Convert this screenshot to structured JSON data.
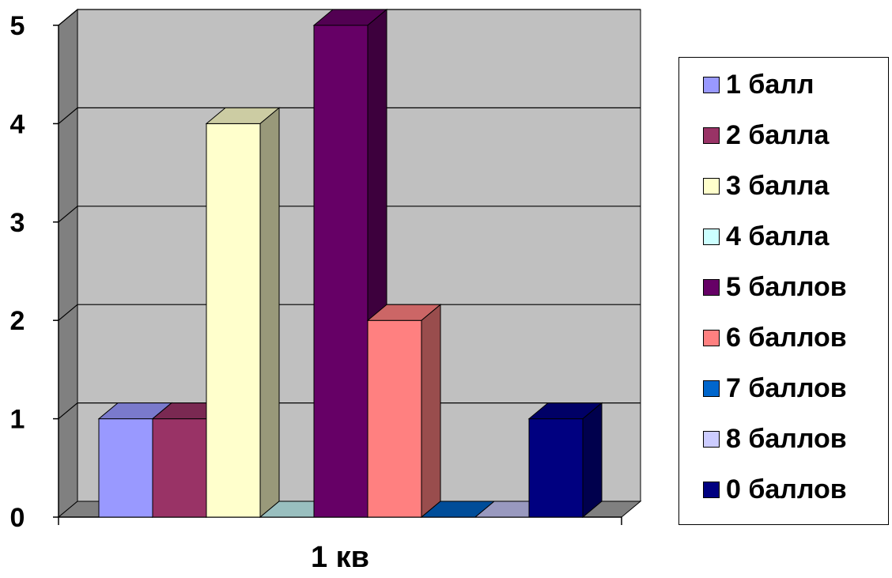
{
  "chart_data": {
    "type": "bar",
    "categories": [
      "1 кв"
    ],
    "xlabel": "",
    "ylabel": "",
    "ylim": [
      0,
      5
    ],
    "yticks": [
      0,
      1,
      2,
      3,
      4,
      5
    ],
    "grid": true,
    "legend_position": "right",
    "series": [
      {
        "name": "1 балл",
        "values": [
          1
        ],
        "color": "#9999FF"
      },
      {
        "name": "2 балла",
        "values": [
          1
        ],
        "color": "#993366"
      },
      {
        "name": "3 балла",
        "values": [
          4
        ],
        "color": "#FFFFCC"
      },
      {
        "name": "4 балла",
        "values": [
          0
        ],
        "color": "#CCFFFF"
      },
      {
        "name": "5 баллов",
        "values": [
          5
        ],
        "color": "#660066"
      },
      {
        "name": "6 баллов",
        "values": [
          2
        ],
        "color": "#FF8080"
      },
      {
        "name": "7 баллов",
        "values": [
          0
        ],
        "color": "#0066CC"
      },
      {
        "name": "8 баллов",
        "values": [
          0
        ],
        "color": "#CCCCFF"
      },
      {
        "name": "0 баллов",
        "values": [
          1
        ],
        "color": "#000080"
      }
    ]
  }
}
